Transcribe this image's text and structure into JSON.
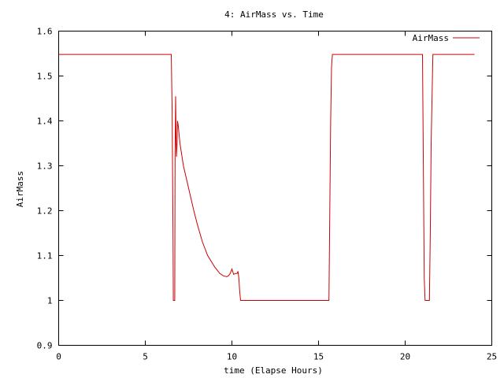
{
  "chart_data": {
    "type": "line",
    "title": "4: AirMass vs. Time",
    "xlabel": "time (Elapse Hours)",
    "ylabel": "AirMass",
    "xlim": [
      0,
      25
    ],
    "ylim": [
      0.9,
      1.6
    ],
    "xticks": [
      0,
      5,
      10,
      15,
      20,
      25
    ],
    "xtick_labels": [
      "0",
      "5",
      "10",
      "15",
      "20",
      "25"
    ],
    "yticks": [
      0.9,
      1.0,
      1.1,
      1.2,
      1.3,
      1.4,
      1.5,
      1.6
    ],
    "ytick_labels": [
      "0.9",
      "1",
      "1.1",
      "1.2",
      "1.3",
      "1.4",
      "1.5",
      "1.6"
    ],
    "grid": false,
    "legend_position": "top-right",
    "series": [
      {
        "name": "AirMass",
        "color": "#cc0000",
        "x": [
          0,
          6.5,
          6.55,
          6.6,
          6.62,
          6.66,
          6.7,
          6.72,
          6.75,
          6.78,
          6.8,
          6.83,
          6.86,
          6.9,
          6.95,
          7.0,
          7.2,
          7.5,
          7.8,
          8.0,
          8.3,
          8.6,
          9.0,
          9.3,
          9.5,
          9.7,
          9.8,
          9.9,
          10.0,
          10.1,
          10.2,
          10.3,
          10.35,
          10.4,
          10.45,
          10.5,
          15.6,
          15.65,
          15.7,
          15.75,
          15.8,
          21.0,
          21.05,
          21.1,
          21.15,
          21.2,
          21.3,
          21.4,
          21.45,
          21.5,
          21.55,
          21.6,
          24.0
        ],
        "y": [
          1.548,
          1.548,
          1.42,
          1.15,
          1.0,
          1.0,
          1.0,
          1.32,
          1.455,
          1.35,
          1.32,
          1.35,
          1.4,
          1.39,
          1.37,
          1.35,
          1.3,
          1.25,
          1.2,
          1.17,
          1.13,
          1.1,
          1.075,
          1.06,
          1.055,
          1.053,
          1.055,
          1.06,
          1.07,
          1.058,
          1.06,
          1.06,
          1.065,
          1.05,
          1.02,
          1.0,
          1.0,
          1.2,
          1.4,
          1.52,
          1.548,
          1.548,
          1.3,
          1.05,
          1.0,
          1.0,
          1.0,
          1.0,
          1.15,
          1.35,
          1.45,
          1.548,
          1.548
        ]
      }
    ]
  }
}
